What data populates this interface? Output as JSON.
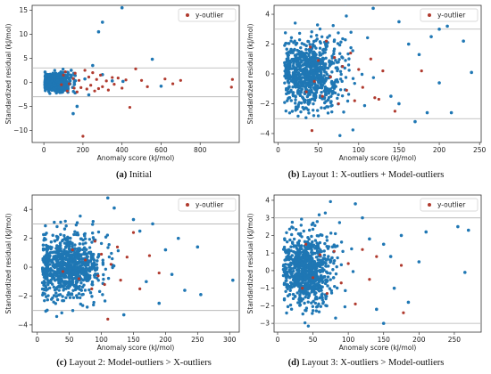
{
  "colors": {
    "points": "#1f77b4",
    "outlier": "#b03a2e",
    "threshold_line": "#b0b0b0"
  },
  "chart_data": [
    {
      "type": "scatter",
      "caption_tag": "(a)",
      "caption_text": " Initial",
      "xlabel": "Anomaly score (kJ/mol)",
      "ylabel": "Standardized residual (kJ/mol)",
      "xlim": [
        -60,
        1000
      ],
      "ylim": [
        -12.5,
        16
      ],
      "xticks": [
        0,
        200,
        400,
        600,
        800
      ],
      "yticks": [
        -10,
        -5,
        0,
        5,
        10,
        15
      ],
      "threshold_lines": [
        3,
        -3
      ],
      "legend_label": "y-outlier",
      "legend_position": "top-right",
      "cluster": {
        "x_center": 60,
        "x_spread": 35,
        "x_min": 5,
        "y_spread": 0.8,
        "count": 900
      },
      "extra_points": [
        [
          140,
          2.5
        ],
        [
          160,
          -2.2
        ],
        [
          210,
          0.7
        ],
        [
          250,
          3.5
        ],
        [
          300,
          1.6
        ],
        [
          350,
          0.3
        ],
        [
          405,
          0.2
        ],
        [
          280,
          10.5
        ],
        [
          300,
          12.5
        ],
        [
          400,
          15.5
        ],
        [
          555,
          4.8
        ],
        [
          600,
          -0.8
        ],
        [
          150,
          -6.5
        ],
        [
          170,
          -5.0
        ],
        [
          230,
          -2.6
        ]
      ],
      "outliers": [
        [
          90,
          -0.5
        ],
        [
          100,
          1.5
        ],
        [
          110,
          2.2
        ],
        [
          120,
          -1.8
        ],
        [
          130,
          -0.3
        ],
        [
          150,
          0.8
        ],
        [
          155,
          -1.2
        ],
        [
          160,
          1.9
        ],
        [
          170,
          -2.0
        ],
        [
          180,
          0.4
        ],
        [
          190,
          -1.1
        ],
        [
          200,
          -11.2
        ],
        [
          210,
          2.5
        ],
        [
          220,
          -1.4
        ],
        [
          230,
          1.1
        ],
        [
          240,
          -0.6
        ],
        [
          250,
          2.0
        ],
        [
          260,
          -1.8
        ],
        [
          270,
          0.6
        ],
        [
          280,
          -1.3
        ],
        [
          290,
          1.5
        ],
        [
          300,
          -0.9
        ],
        [
          320,
          0.3
        ],
        [
          330,
          -1.6
        ],
        [
          350,
          1.0
        ],
        [
          360,
          -0.4
        ],
        [
          380,
          0.9
        ],
        [
          400,
          -1.2
        ],
        [
          420,
          0.5
        ],
        [
          440,
          -5.2
        ],
        [
          470,
          2.8
        ],
        [
          500,
          0.4
        ],
        [
          530,
          -0.9
        ],
        [
          620,
          0.7
        ],
        [
          660,
          -0.3
        ],
        [
          700,
          0.4
        ],
        [
          960,
          -1.0
        ],
        [
          965,
          0.6
        ]
      ]
    },
    {
      "type": "scatter",
      "caption_tag": "(b)",
      "caption_text": " Layout 1: X-outliers + Model-outliers",
      "xlabel": "Anomaly score (kJ/mol)",
      "ylabel": "Standardized residual (kJ/mol)",
      "xlim": [
        -5,
        252
      ],
      "ylim": [
        -4.6,
        4.6
      ],
      "xticks": [
        0,
        50,
        100,
        150,
        200,
        250
      ],
      "yticks": [
        -4,
        -2,
        0,
        2,
        4
      ],
      "threshold_lines": [
        3,
        -3
      ],
      "legend_label": "y-outlier",
      "legend_position": "top-right",
      "cluster": {
        "x_center": 40,
        "x_spread": 22,
        "x_min": 8,
        "y_spread": 1.1,
        "count": 800
      },
      "extra_points": [
        [
          118,
          4.4
        ],
        [
          150,
          3.5
        ],
        [
          162,
          2.0
        ],
        [
          190,
          2.5
        ],
        [
          200,
          3.0
        ],
        [
          210,
          3.2
        ],
        [
          240,
          0.1
        ],
        [
          150,
          -2.0
        ],
        [
          170,
          -3.2
        ],
        [
          185,
          -2.6
        ],
        [
          200,
          -0.6
        ],
        [
          215,
          -2.6
        ],
        [
          175,
          1.3
        ],
        [
          140,
          -1.5
        ],
        [
          230,
          2.2
        ]
      ],
      "outliers": [
        [
          35,
          -1.2
        ],
        [
          40,
          1.8
        ],
        [
          45,
          -0.5
        ],
        [
          50,
          0.9
        ],
        [
          55,
          -1.5
        ],
        [
          60,
          2.2
        ],
        [
          65,
          -0.2
        ],
        [
          70,
          1.1
        ],
        [
          75,
          -2.0
        ],
        [
          80,
          0.5
        ],
        [
          85,
          -1.1
        ],
        [
          90,
          1.4
        ],
        [
          95,
          -1.8
        ],
        [
          100,
          0.3
        ],
        [
          105,
          -0.9
        ],
        [
          115,
          1.0
        ],
        [
          120,
          -1.6
        ],
        [
          125,
          -1.7
        ],
        [
          130,
          0.2
        ],
        [
          145,
          -2.5
        ],
        [
          178,
          0.2
        ],
        [
          42,
          -3.8
        ]
      ]
    },
    {
      "type": "scatter",
      "caption_tag": "(c)",
      "caption_text": " Layout 2: Model-outliers > X-outliers",
      "xlabel": "Anomaly score (kJ/mol)",
      "ylabel": "Standardized residual (kJ/mol)",
      "xlim": [
        -8,
        315
      ],
      "ylim": [
        -4.5,
        5.0
      ],
      "xticks": [
        0,
        50,
        100,
        150,
        200,
        250,
        300
      ],
      "yticks": [
        -4,
        -2,
        0,
        2,
        4
      ],
      "threshold_lines": [
        3,
        -3
      ],
      "legend_label": "y-outlier",
      "legend_position": "top-right",
      "cluster": {
        "x_center": 50,
        "x_spread": 28,
        "x_min": 8,
        "y_spread": 1.05,
        "count": 850
      },
      "extra_points": [
        [
          110,
          4.8
        ],
        [
          180,
          3.0
        ],
        [
          190,
          -2.5
        ],
        [
          200,
          1.2
        ],
        [
          210,
          -0.5
        ],
        [
          220,
          2.0
        ],
        [
          230,
          -1.6
        ],
        [
          250,
          1.4
        ],
        [
          255,
          -1.9
        ],
        [
          305,
          -0.9
        ],
        [
          135,
          -3.3
        ],
        [
          150,
          3.3
        ],
        [
          170,
          -1.0
        ],
        [
          120,
          4.1
        ],
        [
          160,
          2.5
        ]
      ],
      "outliers": [
        [
          40,
          -0.3
        ],
        [
          55,
          1.2
        ],
        [
          65,
          -0.8
        ],
        [
          75,
          0.5
        ],
        [
          85,
          -1.5
        ],
        [
          90,
          1.8
        ],
        [
          95,
          -0.6
        ],
        [
          100,
          0.9
        ],
        [
          105,
          -1.2
        ],
        [
          110,
          -3.6
        ],
        [
          115,
          0.2
        ],
        [
          125,
          1.4
        ],
        [
          130,
          -0.9
        ],
        [
          140,
          0.7
        ],
        [
          150,
          2.4
        ],
        [
          160,
          -1.5
        ],
        [
          175,
          0.8
        ],
        [
          190,
          -0.4
        ]
      ]
    },
    {
      "type": "scatter",
      "caption_tag": "(d)",
      "caption_text": " Layout 3: X-outliers > Model-outliers",
      "xlabel": "Anomaly score (kJ/mol)",
      "ylabel": "Standardized residual (kJ/mol)",
      "xlim": [
        -5,
        288
      ],
      "ylim": [
        -3.5,
        4.3
      ],
      "xticks": [
        0,
        50,
        100,
        150,
        200,
        250
      ],
      "yticks": [
        -3,
        -2,
        -1,
        0,
        1,
        2,
        3,
        4
      ],
      "threshold_lines": [
        3,
        -3
      ],
      "legend_label": "y-outlier",
      "legend_position": "top-right",
      "cluster": {
        "x_center": 42,
        "x_spread": 20,
        "x_min": 8,
        "y_spread": 1.0,
        "count": 800
      },
      "extra_points": [
        [
          110,
          3.8
        ],
        [
          150,
          1.5
        ],
        [
          165,
          -1.0
        ],
        [
          175,
          2.0
        ],
        [
          185,
          -1.8
        ],
        [
          200,
          0.5
        ],
        [
          210,
          2.2
        ],
        [
          255,
          2.5
        ],
        [
          265,
          -0.1
        ],
        [
          270,
          2.3
        ],
        [
          150,
          -3.0
        ],
        [
          120,
          3.0
        ],
        [
          140,
          -2.2
        ],
        [
          130,
          1.8
        ],
        [
          160,
          0.8
        ]
      ],
      "outliers": [
        [
          35,
          -1.0
        ],
        [
          40,
          1.5
        ],
        [
          50,
          -0.4
        ],
        [
          60,
          0.9
        ],
        [
          70,
          -1.3
        ],
        [
          80,
          1.1
        ],
        [
          90,
          -0.7
        ],
        [
          100,
          0.4
        ],
        [
          110,
          -1.9
        ],
        [
          120,
          1.2
        ],
        [
          130,
          -0.5
        ],
        [
          140,
          0.8
        ],
        [
          175,
          0.3
        ],
        [
          178,
          -2.4
        ]
      ]
    }
  ]
}
